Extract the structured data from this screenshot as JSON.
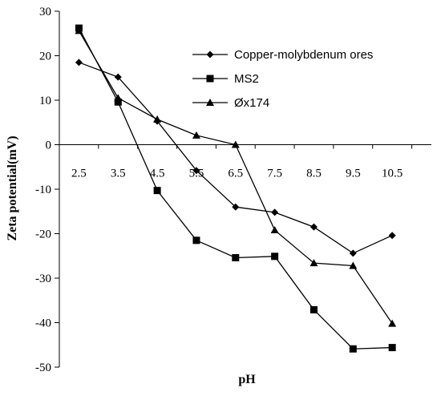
{
  "chart_data": {
    "type": "line",
    "xlabel": "pH",
    "ylabel": "Zeta potential(mV)",
    "categories": [
      "2.5",
      "3.5",
      "4.5",
      "5.5",
      "6.5",
      "7.5",
      "8.5",
      "9.5",
      "10.5"
    ],
    "ylim": [
      -50,
      30
    ],
    "yticks": [
      30,
      20,
      10,
      0,
      -10,
      -20,
      -30,
      -40,
      -50
    ],
    "grid": false,
    "legend_position": "top-right",
    "series": [
      {
        "name": "Copper-molybdenum ores",
        "marker": "diamond",
        "color": "#000000",
        "values": [
          18.5,
          15.2,
          5.3,
          -5.8,
          -14.0,
          -15.2,
          -18.5,
          -24.4,
          -20.4
        ]
      },
      {
        "name": "MS2",
        "marker": "square",
        "color": "#000000",
        "values": [
          26.2,
          9.6,
          -10.3,
          -21.5,
          -25.4,
          -25.1,
          -37.1,
          -45.9,
          -45.6
        ]
      },
      {
        "name": "Øx174",
        "marker": "triangle",
        "color": "#000000",
        "values": [
          25.6,
          10.5,
          5.7,
          2.1,
          0.0,
          -19.2,
          -26.6,
          -27.2,
          -40.2
        ]
      }
    ]
  }
}
